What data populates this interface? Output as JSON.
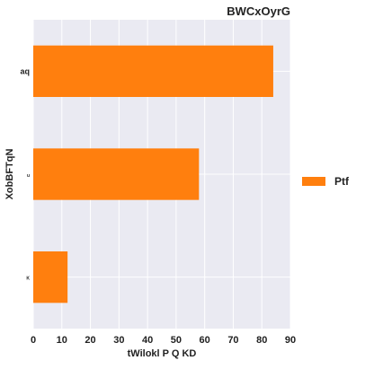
{
  "chart_data": {
    "type": "bar",
    "orientation": "horizontal",
    "title": "BWCxOyrG",
    "xlabel": "tWilokl P Q KD",
    "ylabel": "XobBFTqN",
    "categories": [
      "aq",
      "u",
      "K"
    ],
    "series": [
      {
        "name": "Ptf",
        "values": [
          84,
          58,
          12
        ],
        "color": "#ff7f0e"
      }
    ],
    "xlim": [
      0,
      90
    ],
    "xticks": [
      0,
      10,
      20,
      30,
      40,
      50,
      60,
      70,
      80,
      90
    ],
    "grid": true,
    "legend_position": "right",
    "background_color": "#eaeaf2",
    "grid_color": "#ffffff"
  }
}
